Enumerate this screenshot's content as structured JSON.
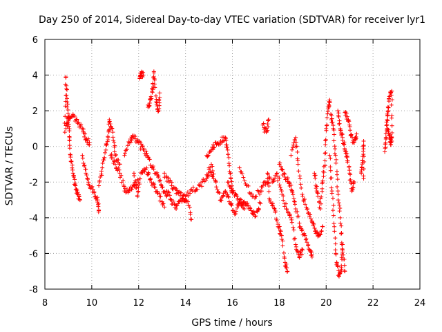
{
  "chart_data": {
    "type": "scatter",
    "title": "Day 250 of 2014, Sidereal Day-to-day VTEC variation (SDTVAR) for receiver lyr1",
    "xlabel": "GPS time / hours",
    "ylabel": "SDTVAR / TECUs",
    "xlim": [
      8,
      24
    ],
    "ylim": [
      -8,
      6
    ],
    "xticks": [
      "8",
      "10",
      "12",
      "14",
      "16",
      "18",
      "20",
      "22",
      "24"
    ],
    "yticks": [
      "6",
      "4",
      "2",
      "0",
      "-2",
      "-4",
      "-6",
      "-8"
    ],
    "marker": "+",
    "color": "#ff0000",
    "grid": true,
    "series": [
      {
        "name": "SDTVAR",
        "tracks": [
          [
            [
              8.85,
              0.8
            ],
            [
              8.9,
              3.9
            ],
            [
              8.95,
              2.5
            ],
            [
              9.0,
              1.5
            ],
            [
              9.05,
              0.5
            ],
            [
              9.1,
              -0.6
            ],
            [
              9.2,
              -1.5
            ],
            [
              9.3,
              -2.2
            ],
            [
              9.4,
              -2.7
            ],
            [
              9.5,
              -3.0
            ]
          ],
          [
            [
              8.9,
              1.0
            ],
            [
              9.0,
              1.6
            ],
            [
              9.2,
              1.8
            ],
            [
              9.4,
              1.3
            ],
            [
              9.6,
              1.0
            ],
            [
              9.75,
              0.4
            ],
            [
              9.9,
              0.2
            ]
          ],
          [
            [
              9.6,
              -0.5
            ],
            [
              9.75,
              -1.5
            ],
            [
              9.9,
              -2.2
            ],
            [
              10.1,
              -2.6
            ],
            [
              10.25,
              -3.0
            ],
            [
              10.3,
              -3.6
            ]
          ],
          [
            [
              10.3,
              -2.2
            ],
            [
              10.45,
              -1.2
            ],
            [
              10.6,
              -0.2
            ],
            [
              10.7,
              0.5
            ],
            [
              10.75,
              1.5
            ],
            [
              10.9,
              0.8
            ],
            [
              11.0,
              -0.5
            ],
            [
              11.2,
              -1.0
            ]
          ],
          [
            [
              10.8,
              -0.5
            ],
            [
              11.0,
              -1.0
            ],
            [
              11.2,
              -1.5
            ],
            [
              11.4,
              -2.5
            ],
            [
              11.6,
              -2.5
            ],
            [
              11.8,
              -2.2
            ],
            [
              12.0,
              -2.0
            ]
          ],
          [
            [
              11.4,
              -0.5
            ],
            [
              11.6,
              0.2
            ],
            [
              11.8,
              0.6
            ],
            [
              12.0,
              0.2
            ],
            [
              12.2,
              -0.2
            ],
            [
              12.4,
              -0.6
            ],
            [
              12.6,
              -1.2
            ],
            [
              12.8,
              -1.6
            ],
            [
              13.0,
              -2.3
            ],
            [
              13.2,
              -2.8
            ]
          ],
          [
            [
              11.8,
              -1.5
            ],
            [
              11.95,
              -2.8
            ],
            [
              12.1,
              -1.5
            ],
            [
              12.3,
              -1.3
            ],
            [
              12.5,
              -1.8
            ],
            [
              12.7,
              -2.3
            ],
            [
              12.9,
              -2.8
            ],
            [
              13.1,
              -3.4
            ]
          ],
          [
            [
              12.05,
              3.9
            ],
            [
              12.1,
              4.1
            ],
            [
              12.2,
              4.0
            ]
          ],
          [
            [
              12.4,
              2.2
            ],
            [
              12.5,
              2.6
            ],
            [
              12.6,
              3.2
            ],
            [
              12.65,
              4.2
            ],
            [
              12.75,
              2.5
            ],
            [
              12.85,
              2.0
            ],
            [
              12.9,
              3.0
            ]
          ],
          [
            [
              13.1,
              -1.5
            ],
            [
              13.3,
              -2.0
            ],
            [
              13.5,
              -2.3
            ],
            [
              13.7,
              -2.6
            ],
            [
              13.9,
              -2.9
            ],
            [
              14.1,
              -3.1
            ],
            [
              14.25,
              -4.1
            ]
          ],
          [
            [
              13.2,
              -2.5
            ],
            [
              13.4,
              -3.0
            ],
            [
              13.6,
              -3.5
            ],
            [
              13.8,
              -3.0
            ],
            [
              14.0,
              -2.8
            ],
            [
              14.3,
              -2.5
            ],
            [
              14.6,
              -2.2
            ],
            [
              14.9,
              -1.8
            ],
            [
              15.0,
              -1.2
            ],
            [
              15.2,
              -1.8
            ]
          ],
          [
            [
              14.9,
              -0.5
            ],
            [
              15.1,
              -0.2
            ],
            [
              15.3,
              0.2
            ],
            [
              15.5,
              0.3
            ],
            [
              15.7,
              0.5
            ],
            [
              15.8,
              -0.2
            ],
            [
              15.9,
              -1.5
            ],
            [
              16.0,
              -2.5
            ]
          ],
          [
            [
              15.1,
              -1.0
            ],
            [
              15.3,
              -2.0
            ],
            [
              15.5,
              -3.0
            ],
            [
              15.7,
              -2.5
            ],
            [
              15.9,
              -3.2
            ],
            [
              16.1,
              -3.8
            ],
            [
              16.3,
              -3.0
            ],
            [
              16.5,
              -3.5
            ]
          ],
          [
            [
              15.8,
              -2.0
            ],
            [
              16.0,
              -2.6
            ],
            [
              16.2,
              -2.8
            ],
            [
              16.4,
              -3.2
            ],
            [
              16.6,
              -3.2
            ],
            [
              16.8,
              -3.6
            ],
            [
              17.0,
              -3.9
            ],
            [
              17.2,
              -3.2
            ]
          ],
          [
            [
              16.3,
              -1.2
            ],
            [
              16.6,
              -2.2
            ],
            [
              16.9,
              -2.8
            ],
            [
              17.2,
              -2.5
            ],
            [
              17.4,
              -2.0
            ],
            [
              17.6,
              -1.8
            ]
          ],
          [
            [
              17.3,
              1.2
            ],
            [
              17.45,
              0.8
            ],
            [
              17.55,
              1.5
            ]
          ],
          [
            [
              17.5,
              -1.5
            ],
            [
              17.6,
              -3.0
            ],
            [
              17.8,
              -3.5
            ],
            [
              17.95,
              -4.5
            ],
            [
              18.1,
              -5.0
            ],
            [
              18.25,
              -6.5
            ],
            [
              18.35,
              -7.0
            ]
          ],
          [
            [
              17.7,
              -2.0
            ],
            [
              17.9,
              -1.5
            ],
            [
              18.1,
              -2.5
            ],
            [
              18.3,
              -3.5
            ],
            [
              18.5,
              -4.0
            ],
            [
              18.7,
              -5.5
            ],
            [
              18.85,
              -6.2
            ],
            [
              19.0,
              -5.8
            ]
          ],
          [
            [
              18.0,
              -1.0
            ],
            [
              18.2,
              -1.5
            ],
            [
              18.4,
              -2.0
            ],
            [
              18.55,
              -2.5
            ],
            [
              18.7,
              -3.5
            ],
            [
              18.9,
              -4.5
            ],
            [
              19.1,
              -5.0
            ],
            [
              19.3,
              -5.8
            ],
            [
              19.4,
              -6.2
            ]
          ],
          [
            [
              18.5,
              -0.5
            ],
            [
              18.7,
              0.5
            ],
            [
              18.8,
              -1.0
            ],
            [
              19.0,
              -2.8
            ],
            [
              19.2,
              -3.5
            ],
            [
              19.4,
              -4.2
            ],
            [
              19.55,
              -4.7
            ],
            [
              19.7,
              -5.0
            ],
            [
              19.85,
              -4.5
            ]
          ],
          [
            [
              19.5,
              -1.5
            ],
            [
              19.6,
              -2.5
            ],
            [
              19.75,
              -3.5
            ],
            [
              19.85,
              -2.0
            ],
            [
              19.95,
              -0.8
            ],
            [
              20.0,
              1.0
            ],
            [
              20.1,
              2.2
            ],
            [
              20.15,
              2.6
            ]
          ],
          [
            [
              20.15,
              -0.5
            ],
            [
              20.25,
              -2.5
            ],
            [
              20.35,
              -4.5
            ],
            [
              20.45,
              -6.5
            ],
            [
              20.55,
              -7.2
            ],
            [
              20.65,
              -6.8
            ],
            [
              20.7,
              -5.5
            ]
          ],
          [
            [
              20.2,
              1.8
            ],
            [
              20.3,
              1.0
            ],
            [
              20.4,
              -0.5
            ],
            [
              20.5,
              -2.5
            ],
            [
              20.6,
              -4.0
            ],
            [
              20.7,
              -5.8
            ],
            [
              20.8,
              -7.0
            ]
          ],
          [
            [
              20.5,
              2.0
            ],
            [
              20.6,
              1.0
            ],
            [
              20.7,
              0.5
            ],
            [
              20.8,
              -0.2
            ],
            [
              20.9,
              -0.6
            ],
            [
              21.0,
              -1.5
            ],
            [
              21.1,
              -2.5
            ],
            [
              21.2,
              -2.0
            ]
          ],
          [
            [
              20.8,
              1.9
            ],
            [
              20.95,
              1.5
            ],
            [
              21.05,
              0.6
            ],
            [
              21.2,
              0.2
            ],
            [
              21.3,
              0.7
            ]
          ],
          [
            [
              21.5,
              -1.5
            ],
            [
              21.55,
              -0.8
            ],
            [
              21.6,
              0.3
            ],
            [
              21.6,
              -1.8
            ]
          ],
          [
            [
              22.5,
              -0.3
            ],
            [
              22.55,
              0.5
            ],
            [
              22.6,
              1.5
            ],
            [
              22.65,
              2.0
            ],
            [
              22.7,
              2.8
            ],
            [
              22.8,
              3.1
            ],
            [
              22.8,
              0.3
            ]
          ],
          [
            [
              22.6,
              1.0
            ],
            [
              22.7,
              0.6
            ],
            [
              22.75,
              0.2
            ],
            [
              22.8,
              0.5
            ]
          ]
        ]
      }
    ]
  }
}
